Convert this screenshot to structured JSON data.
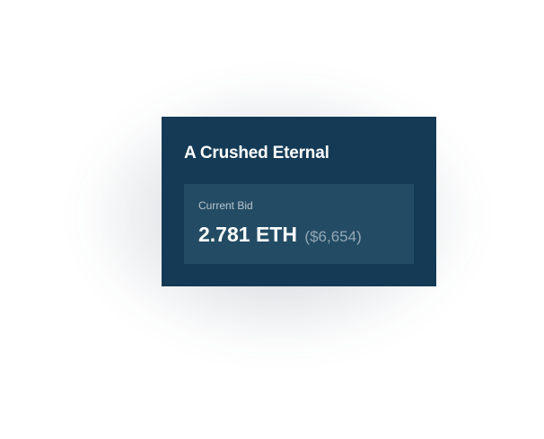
{
  "card": {
    "title": "A Crushed Eternal",
    "bid": {
      "label": "Current Bid",
      "eth_value": "2.781 ETH",
      "usd_value": "($6,654)"
    }
  },
  "colors": {
    "card_background": "#143a55",
    "bid_box_background": "#234c64",
    "title_text": "#ffffff",
    "label_text": "#b9c6d0",
    "usd_text": "#94a7b6"
  }
}
